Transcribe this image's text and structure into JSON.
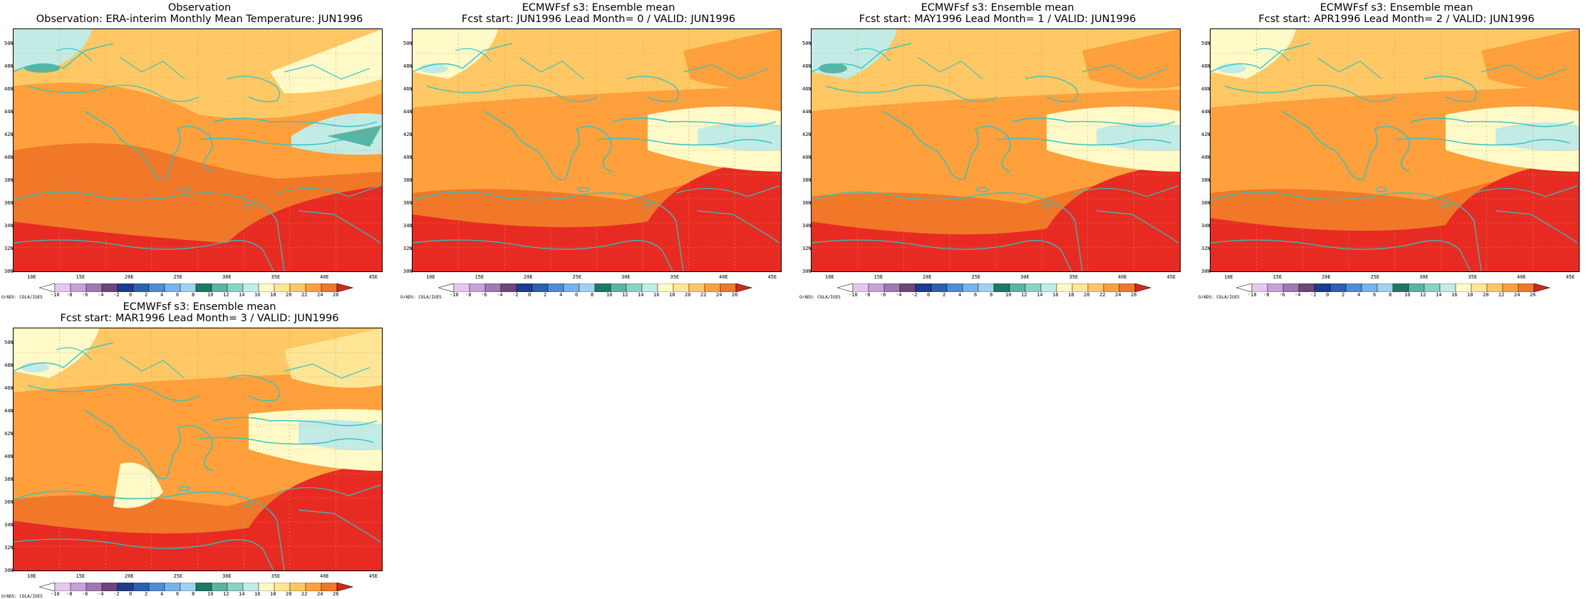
{
  "panels": [
    {
      "title1": "Observation",
      "title2": "Observation: ERA-interim Monthly Mean Temperature: JUN1996"
    },
    {
      "title1": "ECMWFsf s3: Ensemble mean",
      "title2": "Fcst start: JUN1996  Lead Month= 0 / VALID: JUN1996"
    },
    {
      "title1": "ECMWFsf s3: Ensemble mean",
      "title2": "Fcst start: MAY1996  Lead Month= 1 / VALID: JUN1996"
    },
    {
      "title1": "ECMWFsf s3: Ensemble mean",
      "title2": "Fcst start: APR1996  Lead Month= 2 / VALID: JUN1996"
    },
    {
      "title1": "ECMWFsf s3: Ensemble mean",
      "title2": "Fcst start: MAR1996  Lead Month= 3 / VALID: JUN1996"
    }
  ],
  "map": {
    "lat_labels": [
      "50N",
      "48N",
      "46N",
      "44N",
      "42N",
      "40N",
      "38N",
      "36N",
      "34N",
      "32N",
      "30N"
    ],
    "lon_labels": [
      "10E",
      "15E",
      "20E",
      "25E",
      "30E",
      "35E",
      "40E",
      "45E"
    ],
    "lon_range": [
      8,
      46
    ],
    "lat_range": [
      30,
      51
    ]
  },
  "colorbar": {
    "levels": [
      "-10",
      "-8",
      "-6",
      "-4",
      "-2",
      "0",
      "2",
      "4",
      "6",
      "8",
      "10",
      "12",
      "14",
      "16",
      "18",
      "20",
      "22",
      "24",
      "26"
    ],
    "colors": [
      "#ffffff",
      "#e6c8ee",
      "#c8a0dc",
      "#a078b4",
      "#6e4678",
      "#1e3c8c",
      "#2d5fb4",
      "#508cd2",
      "#78b4e6",
      "#a0d2f0",
      "#1e7864",
      "#5ab4a0",
      "#8cd2c3",
      "#c3ebe6",
      "#fffac8",
      "#ffe696",
      "#ffc864",
      "#ffa03c",
      "#f07828",
      "#d2281e"
    ],
    "credit": "GrADS: COLA/IGES"
  }
}
